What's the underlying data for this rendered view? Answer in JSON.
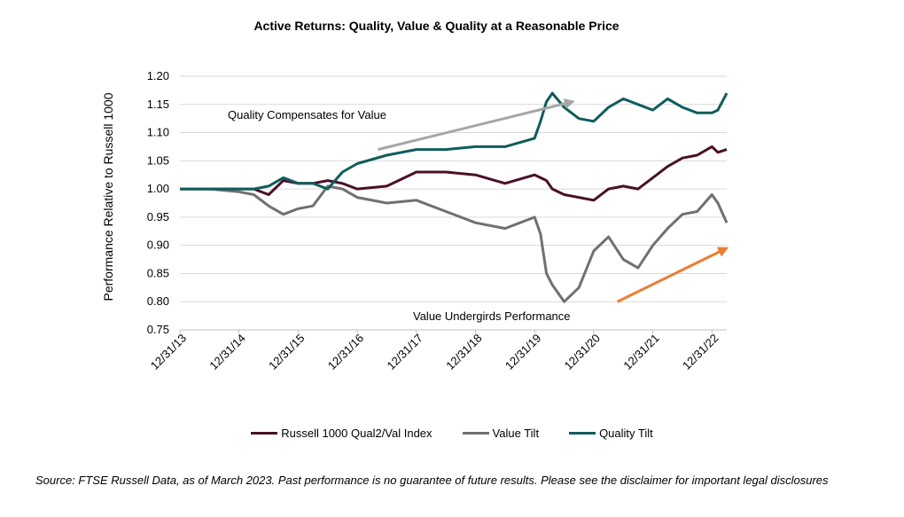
{
  "chart_data": {
    "type": "line",
    "title": "Active Returns: Quality, Value & Quality at a Reasonable Price",
    "ylabel": "Performance Relative to Russell 1000",
    "xlabel": "",
    "ylim": [
      0.75,
      1.2
    ],
    "yticks": [
      "0.75",
      "0.80",
      "0.85",
      "0.90",
      "0.95",
      "1.00",
      "1.05",
      "1.10",
      "1.15",
      "1.20"
    ],
    "xlim": [
      2014.0,
      2023.25
    ],
    "xticks": [
      "12/31/13",
      "12/31/14",
      "12/31/15",
      "12/31/16",
      "12/31/17",
      "12/31/18",
      "12/31/19",
      "12/31/20",
      "12/31/21",
      "12/31/22"
    ],
    "x": [
      2014.0,
      2014.5,
      2015.0,
      2015.25,
      2015.5,
      2015.75,
      2016.0,
      2016.25,
      2016.5,
      2016.75,
      2017.0,
      2017.5,
      2018.0,
      2018.5,
      2019.0,
      2019.5,
      2020.0,
      2020.1,
      2020.2,
      2020.3,
      2020.5,
      2020.75,
      2021.0,
      2021.25,
      2021.5,
      2021.75,
      2022.0,
      2022.25,
      2022.5,
      2022.75,
      2023.0,
      2023.1,
      2023.25
    ],
    "series": [
      {
        "name": "Russell 1000 Qual2/Val Index",
        "color": "#4a1028",
        "values": [
          1.0,
          1.0,
          1.0,
          1.0,
          0.99,
          1.015,
          1.01,
          1.01,
          1.015,
          1.01,
          1.0,
          1.005,
          1.03,
          1.03,
          1.025,
          1.01,
          1.025,
          1.02,
          1.015,
          1.0,
          0.99,
          0.985,
          0.98,
          1.0,
          1.005,
          1.0,
          1.02,
          1.04,
          1.055,
          1.06,
          1.075,
          1.065,
          1.07
        ]
      },
      {
        "name": "Value Tilt",
        "color": "#707070",
        "values": [
          1.0,
          1.0,
          0.995,
          0.99,
          0.97,
          0.955,
          0.965,
          0.97,
          1.005,
          1.0,
          0.985,
          0.975,
          0.98,
          0.96,
          0.94,
          0.93,
          0.95,
          0.92,
          0.85,
          0.83,
          0.8,
          0.825,
          0.89,
          0.915,
          0.875,
          0.86,
          0.9,
          0.93,
          0.955,
          0.96,
          0.99,
          0.975,
          0.94
        ]
      },
      {
        "name": "Quality Tilt",
        "color": "#115c5c",
        "values": [
          1.0,
          1.0,
          1.0,
          1.0,
          1.005,
          1.02,
          1.01,
          1.01,
          1.0,
          1.03,
          1.045,
          1.06,
          1.07,
          1.07,
          1.075,
          1.075,
          1.09,
          1.12,
          1.155,
          1.17,
          1.145,
          1.125,
          1.12,
          1.145,
          1.16,
          1.15,
          1.14,
          1.16,
          1.145,
          1.135,
          1.135,
          1.14,
          1.17
        ]
      }
    ],
    "annotations": [
      {
        "text": "Quality Compensates for Value",
        "color": "#a6a6a6",
        "arrow_from": [
          2017.35,
          1.07
        ],
        "arrow_to": [
          2020.65,
          1.155
        ]
      },
      {
        "text": "Value Undergirds Performance",
        "color": "#ed7d31",
        "arrow_from": [
          2021.4,
          0.8
        ],
        "arrow_to": [
          2023.25,
          0.895
        ]
      }
    ],
    "grid": "horizontal",
    "legend_position": "bottom"
  },
  "source_note": "Source: FTSE Russell Data, as of March 2023. Past performance is no guarantee of future results. Please see the disclaimer for important legal disclosures"
}
